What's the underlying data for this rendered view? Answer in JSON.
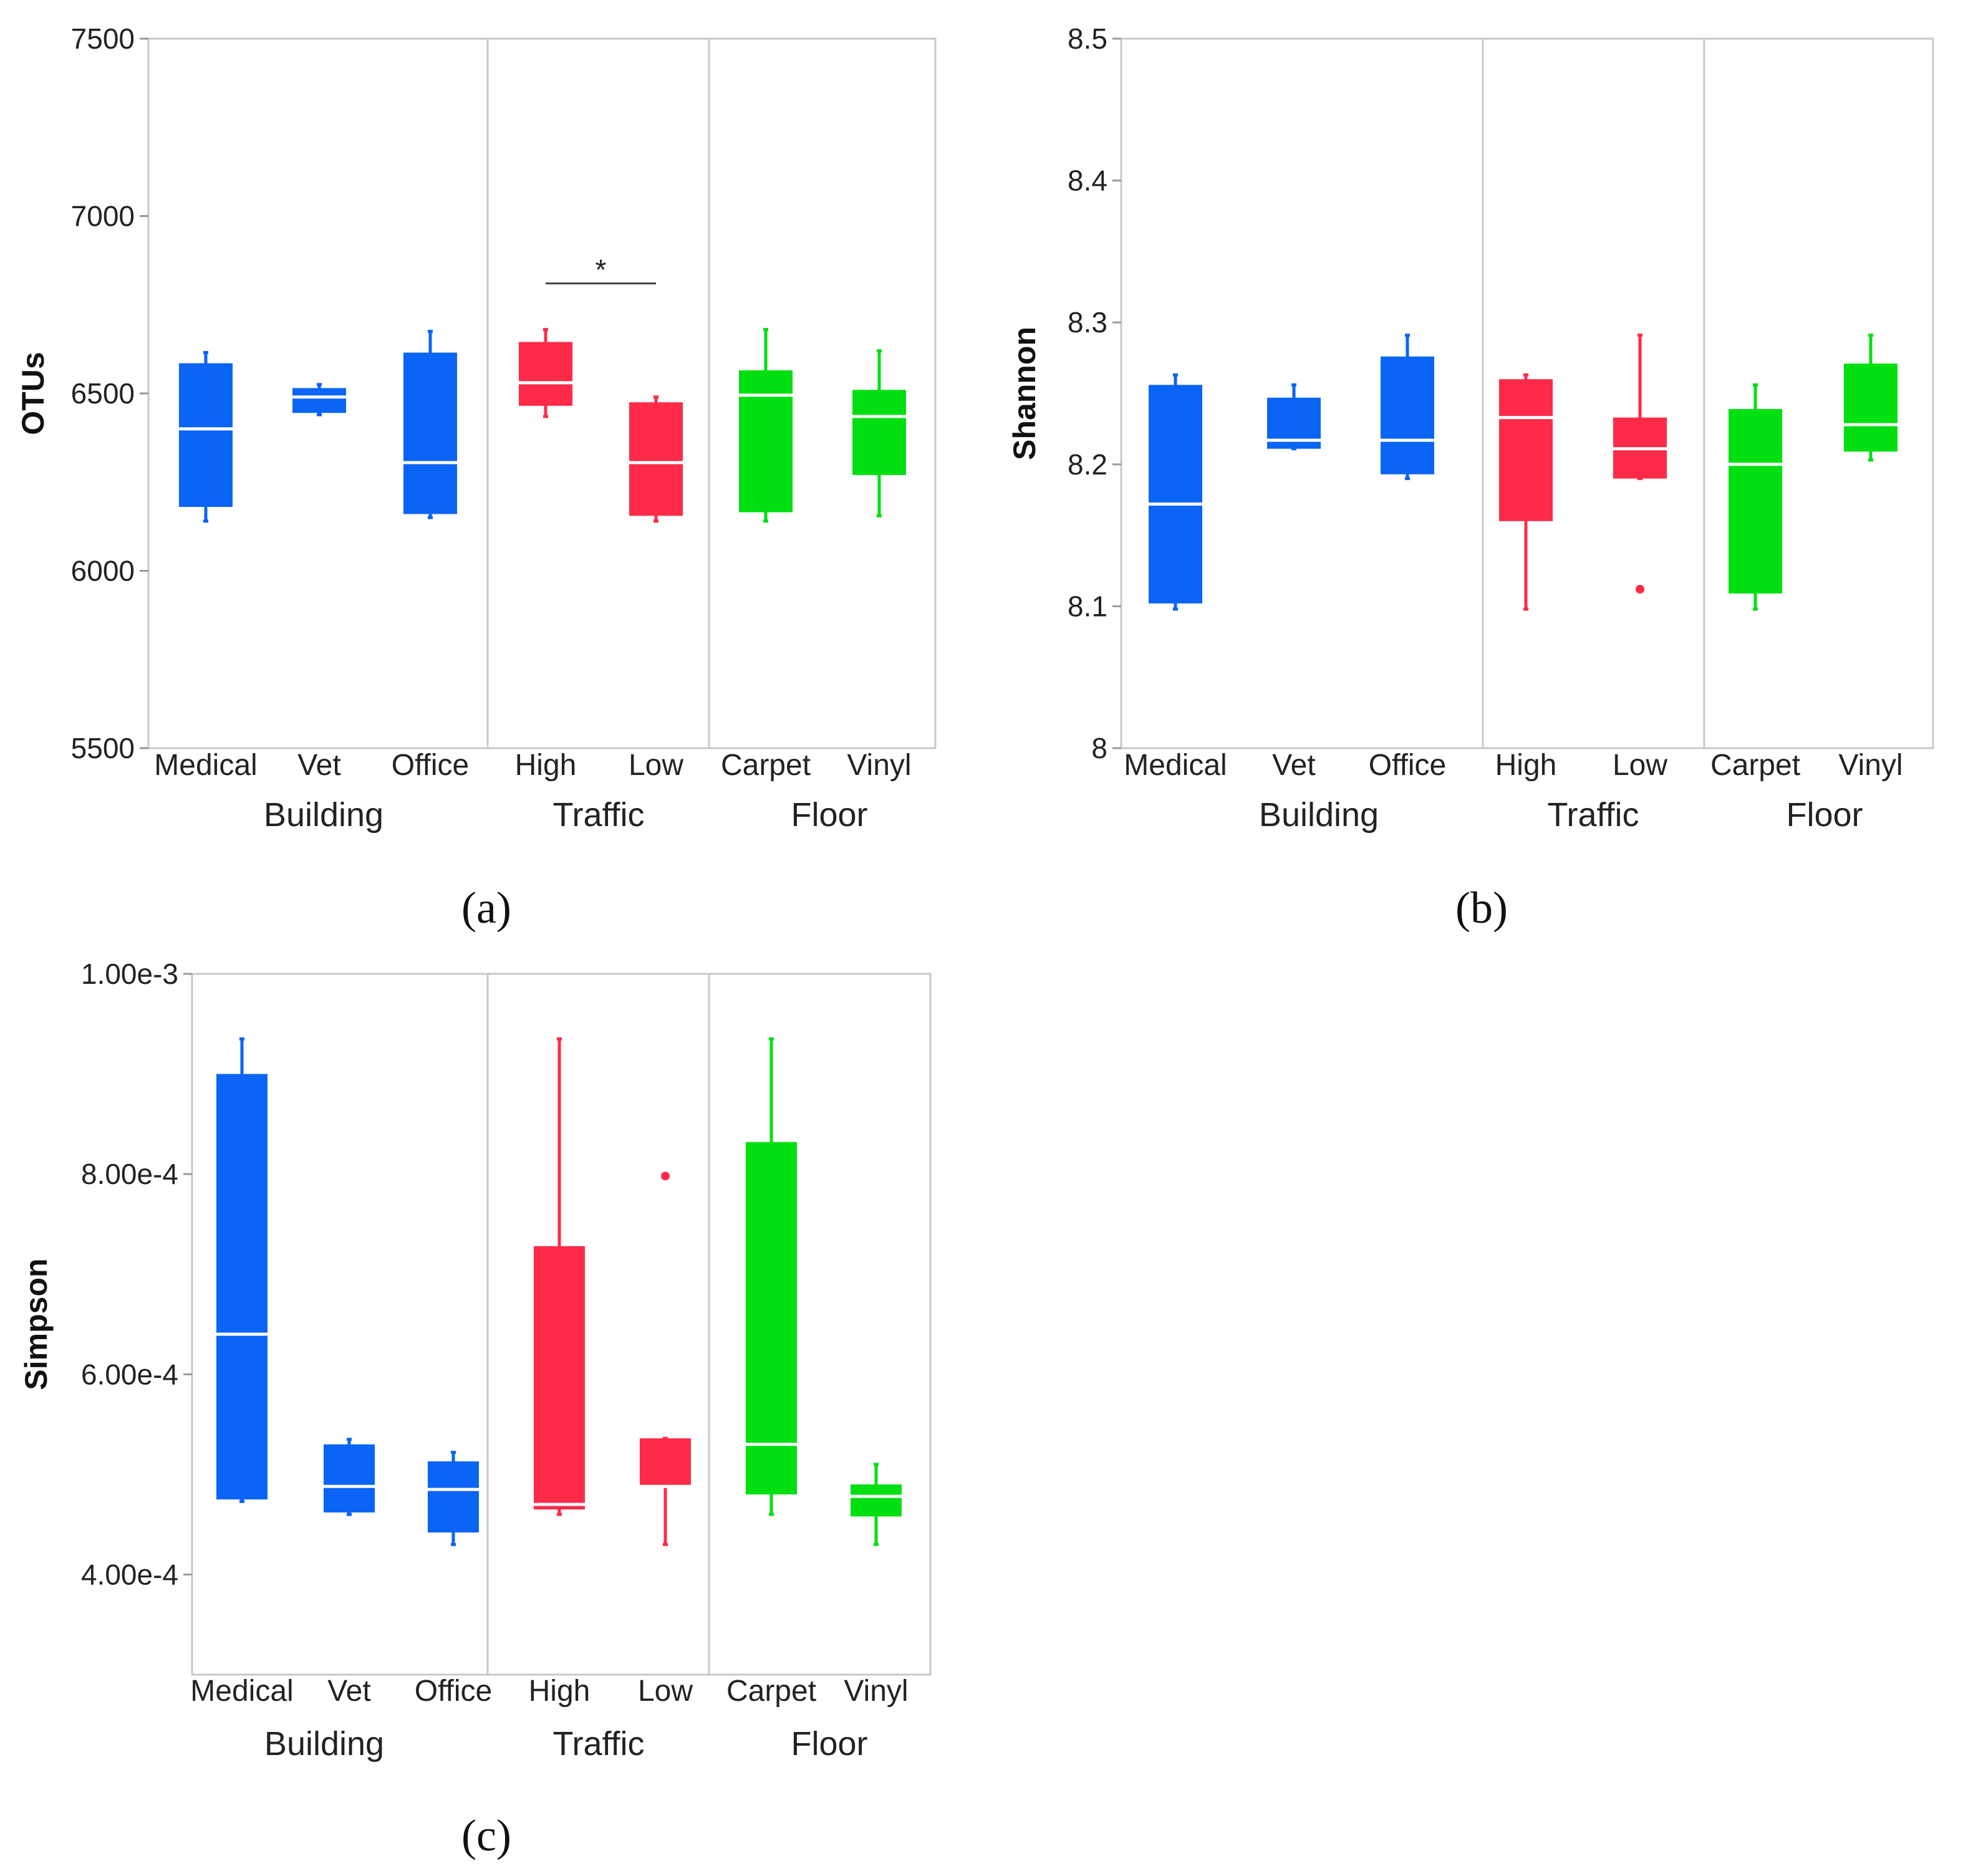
{
  "colors": {
    "building": "#0a64f5",
    "traffic": "#ff2a48",
    "floor": "#00e010",
    "frame": "#c8c8c8",
    "median": "#ffffff"
  },
  "groups": [
    "Building",
    "Traffic",
    "Floor"
  ],
  "categories": [
    "Medical",
    "Vet",
    "Office",
    "High",
    "Low",
    "Carpet",
    "Vinyl"
  ],
  "chart_data": [
    {
      "type": "box",
      "panel_label": "(a)",
      "ylabel": "OTUs",
      "ylim": [
        5500,
        7500
      ],
      "ticks": [
        {
          "value": 5500,
          "label": "5500"
        },
        {
          "value": 6000,
          "label": "6000"
        },
        {
          "value": 6500,
          "label": "6500"
        },
        {
          "value": 7000,
          "label": "7000"
        },
        {
          "value": 7500,
          "label": "7500"
        }
      ],
      "boxes": [
        {
          "category": "Medical",
          "group": "building",
          "min": 6140,
          "q1": 6180,
          "median": 6400,
          "q3": 6585,
          "max": 6615,
          "outliers": []
        },
        {
          "category": "Vet",
          "group": "building",
          "min": 6440,
          "q1": 6445,
          "median": 6490,
          "q3": 6515,
          "max": 6525,
          "outliers": []
        },
        {
          "category": "Office",
          "group": "building",
          "min": 6150,
          "q1": 6160,
          "median": 6305,
          "q3": 6615,
          "max": 6675,
          "outliers": []
        },
        {
          "category": "High",
          "group": "traffic",
          "min": 6435,
          "q1": 6465,
          "median": 6530,
          "q3": 6645,
          "max": 6680,
          "outliers": []
        },
        {
          "category": "Low",
          "group": "traffic",
          "min": 6140,
          "q1": 6155,
          "median": 6305,
          "q3": 6475,
          "max": 6490,
          "outliers": []
        },
        {
          "category": "Carpet",
          "group": "floor",
          "min": 6140,
          "q1": 6165,
          "median": 6495,
          "q3": 6565,
          "max": 6680,
          "outliers": []
        },
        {
          "category": "Vinyl",
          "group": "floor",
          "min": 6155,
          "q1": 6270,
          "median": 6435,
          "q3": 6510,
          "max": 6620,
          "outliers": []
        }
      ],
      "annotation": {
        "text": "*",
        "from": "High",
        "to": "Low",
        "y": 6810
      }
    },
    {
      "type": "box",
      "panel_label": "(b)",
      "ylabel": "Shannon",
      "ylim": [
        8.0,
        8.5
      ],
      "ticks": [
        {
          "value": 8.0,
          "label": "8"
        },
        {
          "value": 8.1,
          "label": "8.1"
        },
        {
          "value": 8.2,
          "label": "8.2"
        },
        {
          "value": 8.3,
          "label": "8.3"
        },
        {
          "value": 8.4,
          "label": "8.4"
        },
        {
          "value": 8.5,
          "label": "8.5"
        }
      ],
      "boxes": [
        {
          "category": "Medical",
          "group": "building",
          "min": 8.098,
          "q1": 8.102,
          "median": 8.172,
          "q3": 8.256,
          "max": 8.263,
          "outliers": []
        },
        {
          "category": "Vet",
          "group": "building",
          "min": 8.211,
          "q1": 8.211,
          "median": 8.217,
          "q3": 8.247,
          "max": 8.256,
          "outliers": []
        },
        {
          "category": "Office",
          "group": "building",
          "min": 8.19,
          "q1": 8.193,
          "median": 8.217,
          "q3": 8.276,
          "max": 8.291,
          "outliers": []
        },
        {
          "category": "High",
          "group": "traffic",
          "min": 8.098,
          "q1": 8.16,
          "median": 8.233,
          "q3": 8.26,
          "max": 8.263,
          "outliers": []
        },
        {
          "category": "Low",
          "group": "traffic",
          "min": 8.19,
          "q1": 8.19,
          "median": 8.211,
          "q3": 8.233,
          "max": 8.291,
          "outliers": [
            8.112
          ]
        },
        {
          "category": "Carpet",
          "group": "floor",
          "min": 8.098,
          "q1": 8.109,
          "median": 8.2,
          "q3": 8.239,
          "max": 8.256,
          "outliers": []
        },
        {
          "category": "Vinyl",
          "group": "floor",
          "min": 8.203,
          "q1": 8.209,
          "median": 8.228,
          "q3": 8.271,
          "max": 8.291,
          "outliers": []
        }
      ]
    },
    {
      "type": "box",
      "panel_label": "(c)",
      "ylabel": "Simpson",
      "ylim": [
        0.0003,
        0.001
      ],
      "ticks": [
        {
          "value": 0.0004,
          "label": "4.00e-4"
        },
        {
          "value": 0.0006,
          "label": "6.00e-4"
        },
        {
          "value": 0.0008,
          "label": "8.00e-4"
        },
        {
          "value": 0.001,
          "label": "1.00e-3"
        }
      ],
      "boxes": [
        {
          "category": "Medical",
          "group": "building",
          "min": 0.000473,
          "q1": 0.000475,
          "median": 0.00064,
          "q3": 0.0009,
          "max": 0.000935,
          "outliers": []
        },
        {
          "category": "Vet",
          "group": "building",
          "min": 0.00046,
          "q1": 0.000462,
          "median": 0.000488,
          "q3": 0.00053,
          "max": 0.000535,
          "outliers": []
        },
        {
          "category": "Office",
          "group": "building",
          "min": 0.00043,
          "q1": 0.000442,
          "median": 0.000485,
          "q3": 0.000513,
          "max": 0.000522,
          "outliers": []
        },
        {
          "category": "High",
          "group": "traffic",
          "min": 0.00046,
          "q1": 0.000465,
          "median": 0.00047,
          "q3": 0.000728,
          "max": 0.000935,
          "outliers": []
        },
        {
          "category": "Low",
          "group": "traffic",
          "min": 0.00043,
          "q1": 0.000488,
          "median": 0.000488,
          "q3": 0.000536,
          "max": 0.000536,
          "outliers": [
            0.000798
          ]
        },
        {
          "category": "Carpet",
          "group": "floor",
          "min": 0.00046,
          "q1": 0.00048,
          "median": 0.00053,
          "q3": 0.000832,
          "max": 0.000935,
          "outliers": []
        },
        {
          "category": "Vinyl",
          "group": "floor",
          "min": 0.00043,
          "q1": 0.000458,
          "median": 0.000478,
          "q3": 0.00049,
          "max": 0.00051,
          "outliers": []
        }
      ]
    }
  ]
}
